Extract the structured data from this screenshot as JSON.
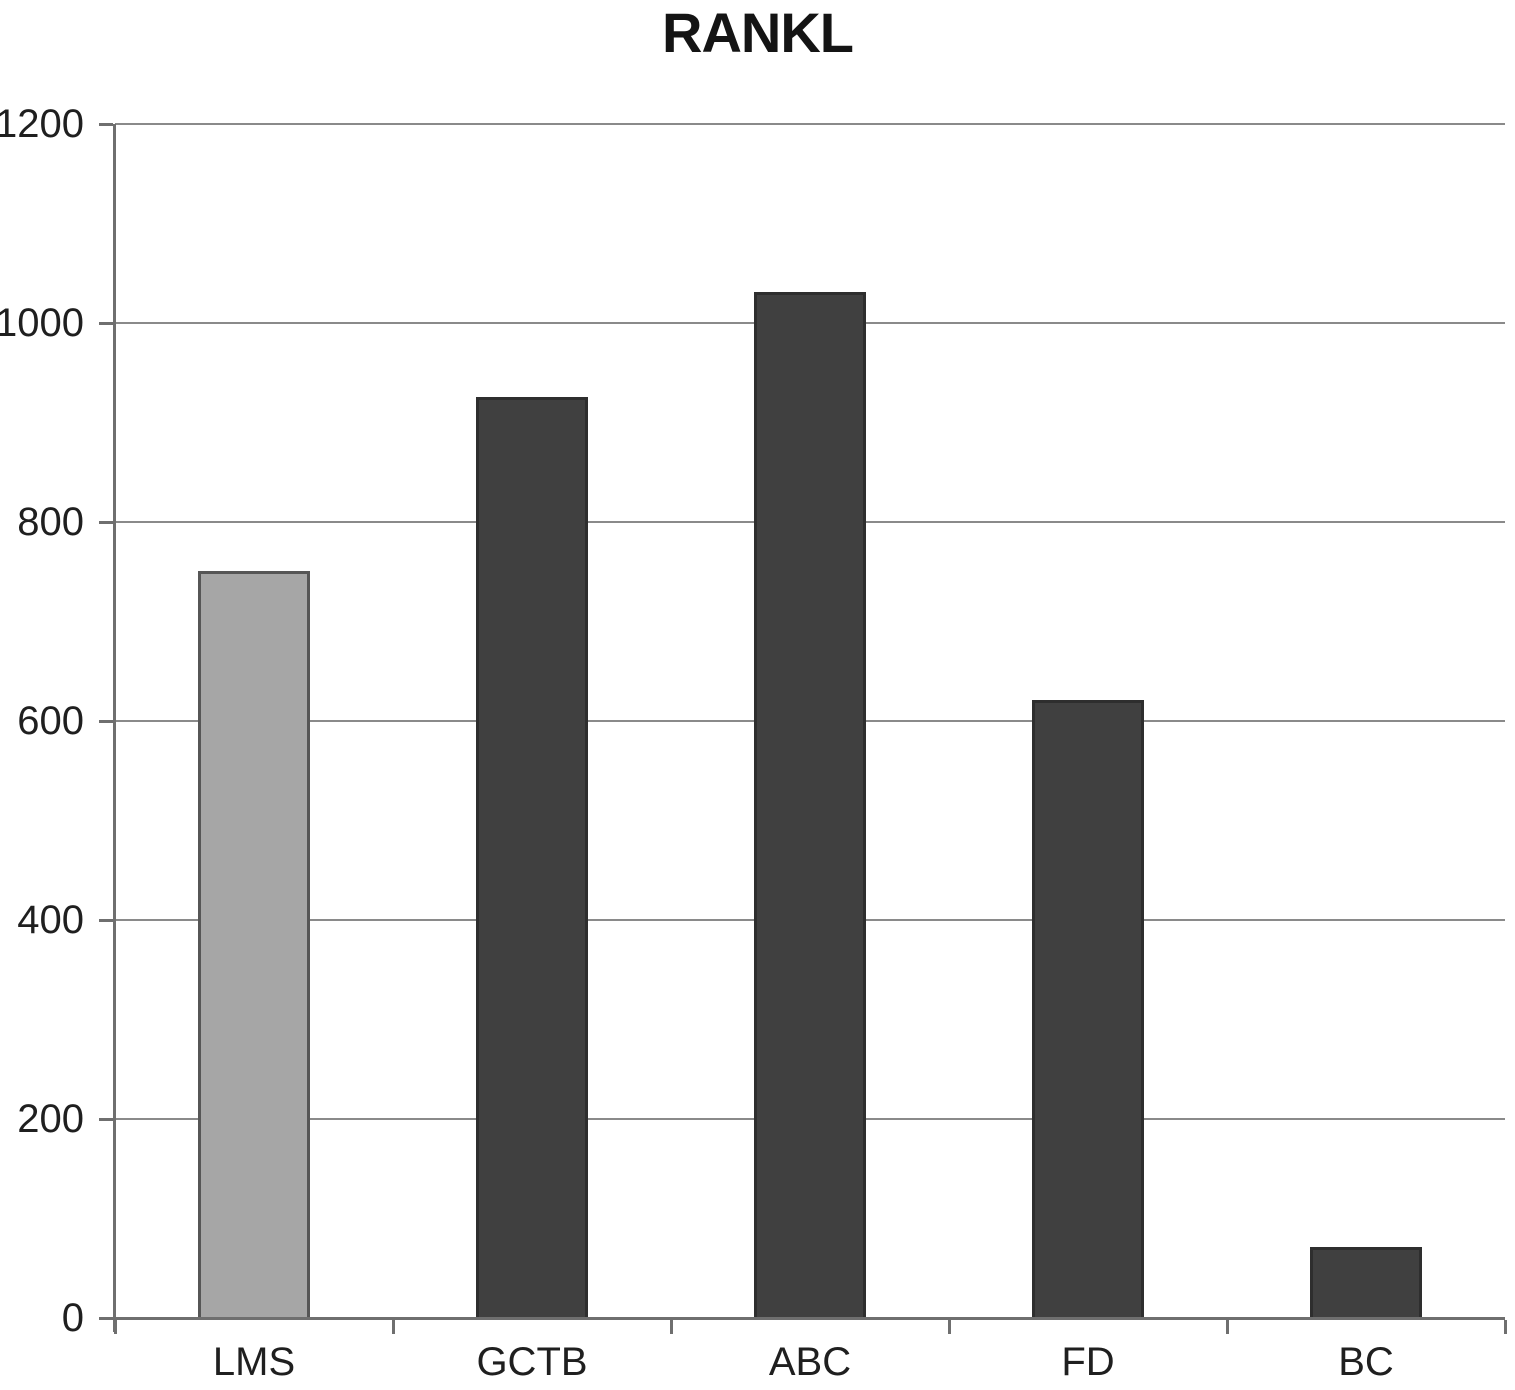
{
  "chart_data": {
    "type": "bar",
    "title": "RANKL",
    "categories": [
      "LMS",
      "GCTB",
      "ABC",
      "FD",
      "BC"
    ],
    "values": [
      750,
      925,
      1030,
      620,
      70
    ],
    "bar_colors": [
      "#a6a6a6",
      "#404040",
      "#404040",
      "#404040",
      "#404040"
    ],
    "bar_border_colors": [
      "#565656",
      "#2e2e2e",
      "#2e2e2e",
      "#2e2e2e",
      "#2e2e2e"
    ],
    "xlabel": "",
    "ylabel": "",
    "ylim": [
      0,
      1200
    ],
    "yticks": [
      0,
      200,
      400,
      600,
      800,
      1000,
      1200
    ],
    "grid": true,
    "legend_position": "none",
    "grid_color": "#8a8a8a",
    "axis_color": "#6f6f6f",
    "text_color": "#1f1f1f",
    "background": "#ffffff"
  }
}
